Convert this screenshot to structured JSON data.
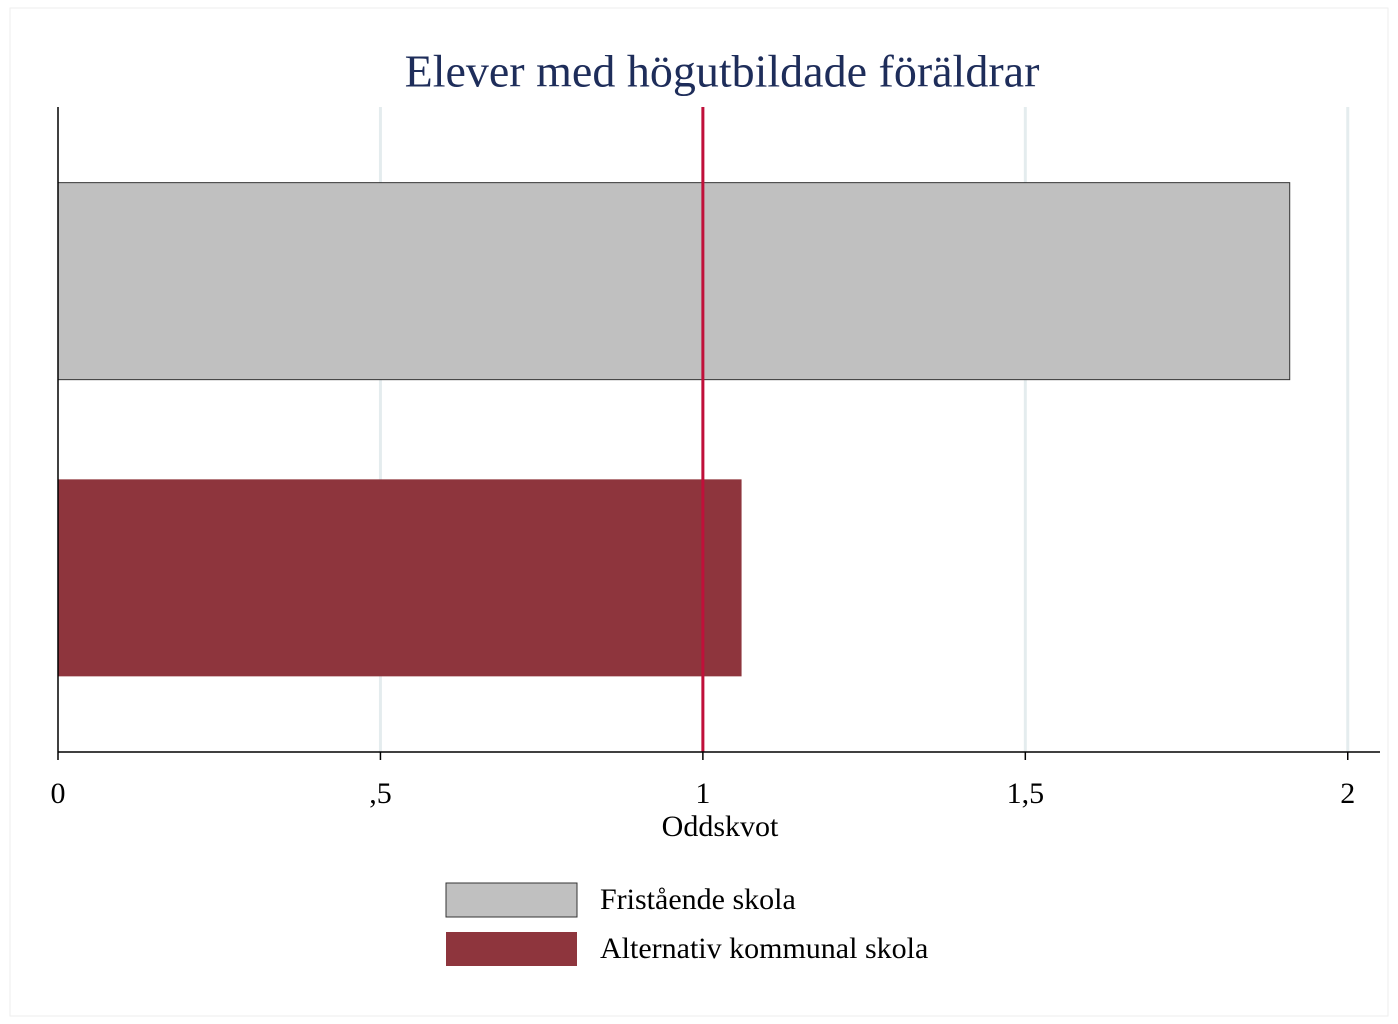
{
  "chart_data": {
    "type": "barh",
    "title": "Elever med högutbildade föräldrar",
    "xlabel": "Oddskvot",
    "series": [
      {
        "name": "Fristående skola",
        "color": "#c0c0c0",
        "values": [
          1.91
        ]
      },
      {
        "name": "Alternativ kommunal skola",
        "color": "#8e353d",
        "values": [
          1.06
        ]
      }
    ],
    "xlim": [
      0,
      2.05
    ],
    "xticks": [
      0,
      {
        "value": 0.5,
        "label": ",5"
      },
      1,
      {
        "value": 1.5,
        "label": "1,5"
      },
      2
    ],
    "grid": true,
    "xline": 1,
    "xline_color": "#c0103a",
    "legend": "bottom"
  }
}
